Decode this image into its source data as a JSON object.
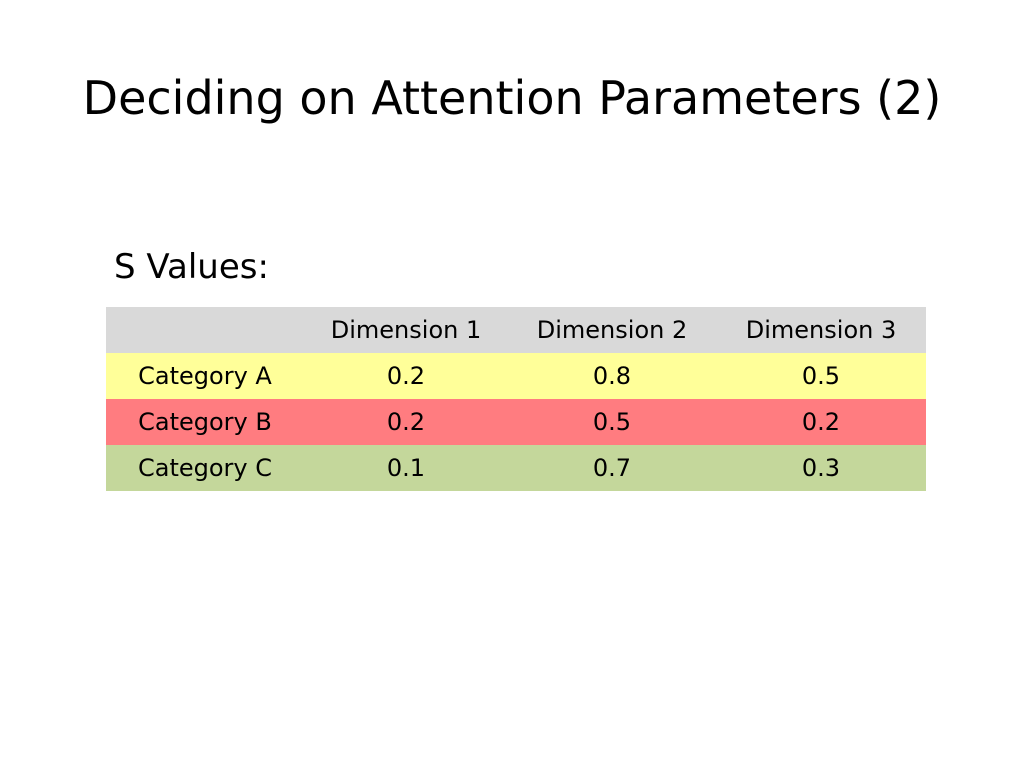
{
  "slide": {
    "title": "Deciding on Attention Parameters (2)",
    "section_label": "S Values:"
  },
  "table": {
    "headers": [
      "",
      "Dimension 1",
      "Dimension 2",
      "Dimension 3"
    ],
    "rows": [
      {
        "label": "Category A",
        "values": [
          "0.2",
          "0.8",
          "0.5"
        ],
        "color": "#ffff99"
      },
      {
        "label": "Category B",
        "values": [
          "0.2",
          "0.5",
          "0.2"
        ],
        "color": "#ff7c80"
      },
      {
        "label": "Category C",
        "values": [
          "0.1",
          "0.7",
          "0.3"
        ],
        "color": "#c4d79b"
      }
    ],
    "header_color": "#d9d9d9"
  }
}
